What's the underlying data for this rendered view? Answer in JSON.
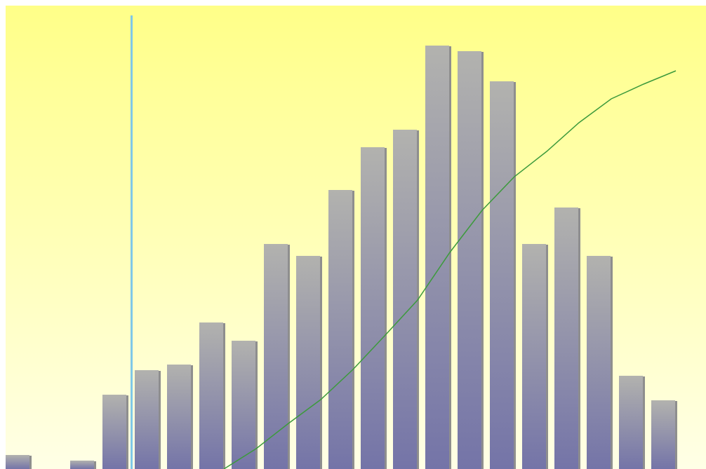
{
  "chart_data": {
    "type": "bar",
    "categories": [
      null,
      null,
      null,
      null,
      null,
      null,
      null,
      null,
      null,
      null,
      null,
      null,
      null,
      null,
      null,
      null,
      null,
      null,
      null,
      null,
      null
    ],
    "series": [
      {
        "type": "bar",
        "color": "#7474a8",
        "values": [
          20,
          0,
          12,
          106,
          141,
          149,
          209,
          183,
          321,
          304,
          398,
          459,
          484,
          604,
          596,
          553,
          321,
          373,
          304,
          133,
          98
        ]
      },
      {
        "type": "line",
        "color": "#3c9a3c",
        "values": [
          null,
          null,
          null,
          null,
          null,
          null,
          0,
          29,
          65,
          99,
          142,
          191,
          241,
          309,
          369,
          417,
          453,
          494,
          528,
          549,
          568
        ]
      }
    ],
    "ylim": [
      0,
      661
    ]
  }
}
